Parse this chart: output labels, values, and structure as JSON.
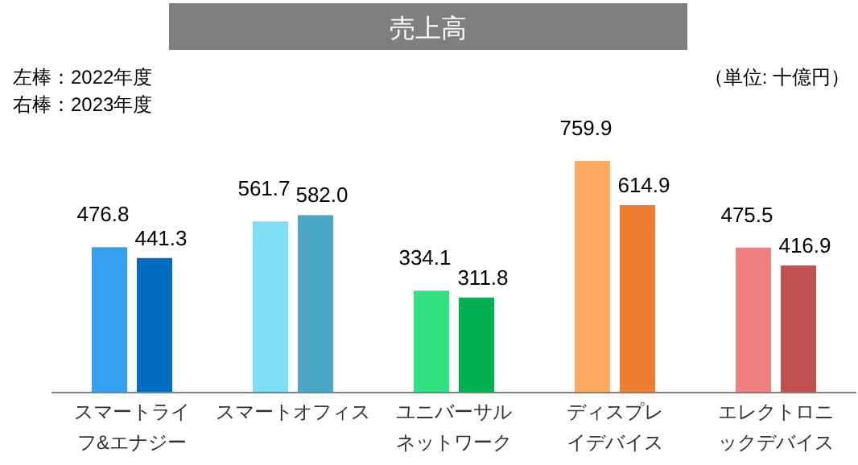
{
  "chart_data": {
    "type": "bar",
    "title": "売上高",
    "categories": [
      "スマートライフ&エナジー",
      "スマートオフィス",
      "ユニバーサルネットワーク",
      "ディスプレイデバイス",
      "エレクトロニックデバイス"
    ],
    "series": [
      {
        "colors": [
          "#33a0f0",
          "#7fdff7",
          "#33e07f",
          "#fcab60",
          "#f08080"
        ],
        "values": [
          476.8,
          561.7,
          334.1,
          759.9,
          475.5
        ],
        "value_labels": [
          "476.8",
          "561.7",
          "334.1",
          "759.9",
          "475.5"
        ]
      },
      {
        "colors": [
          "#006cbf",
          "#4aa8c4",
          "#00b050",
          "#ed7d31",
          "#c0504d"
        ],
        "values": [
          441.3,
          582.0,
          311.8,
          614.9,
          416.9
        ],
        "value_labels": [
          "441.3",
          "582.0",
          "311.8",
          "614.9",
          "416.9"
        ]
      }
    ],
    "annotations": [
      "左棒：2022年度",
      "右棒：2023年度",
      "（単位: 十億円）"
    ]
  }
}
